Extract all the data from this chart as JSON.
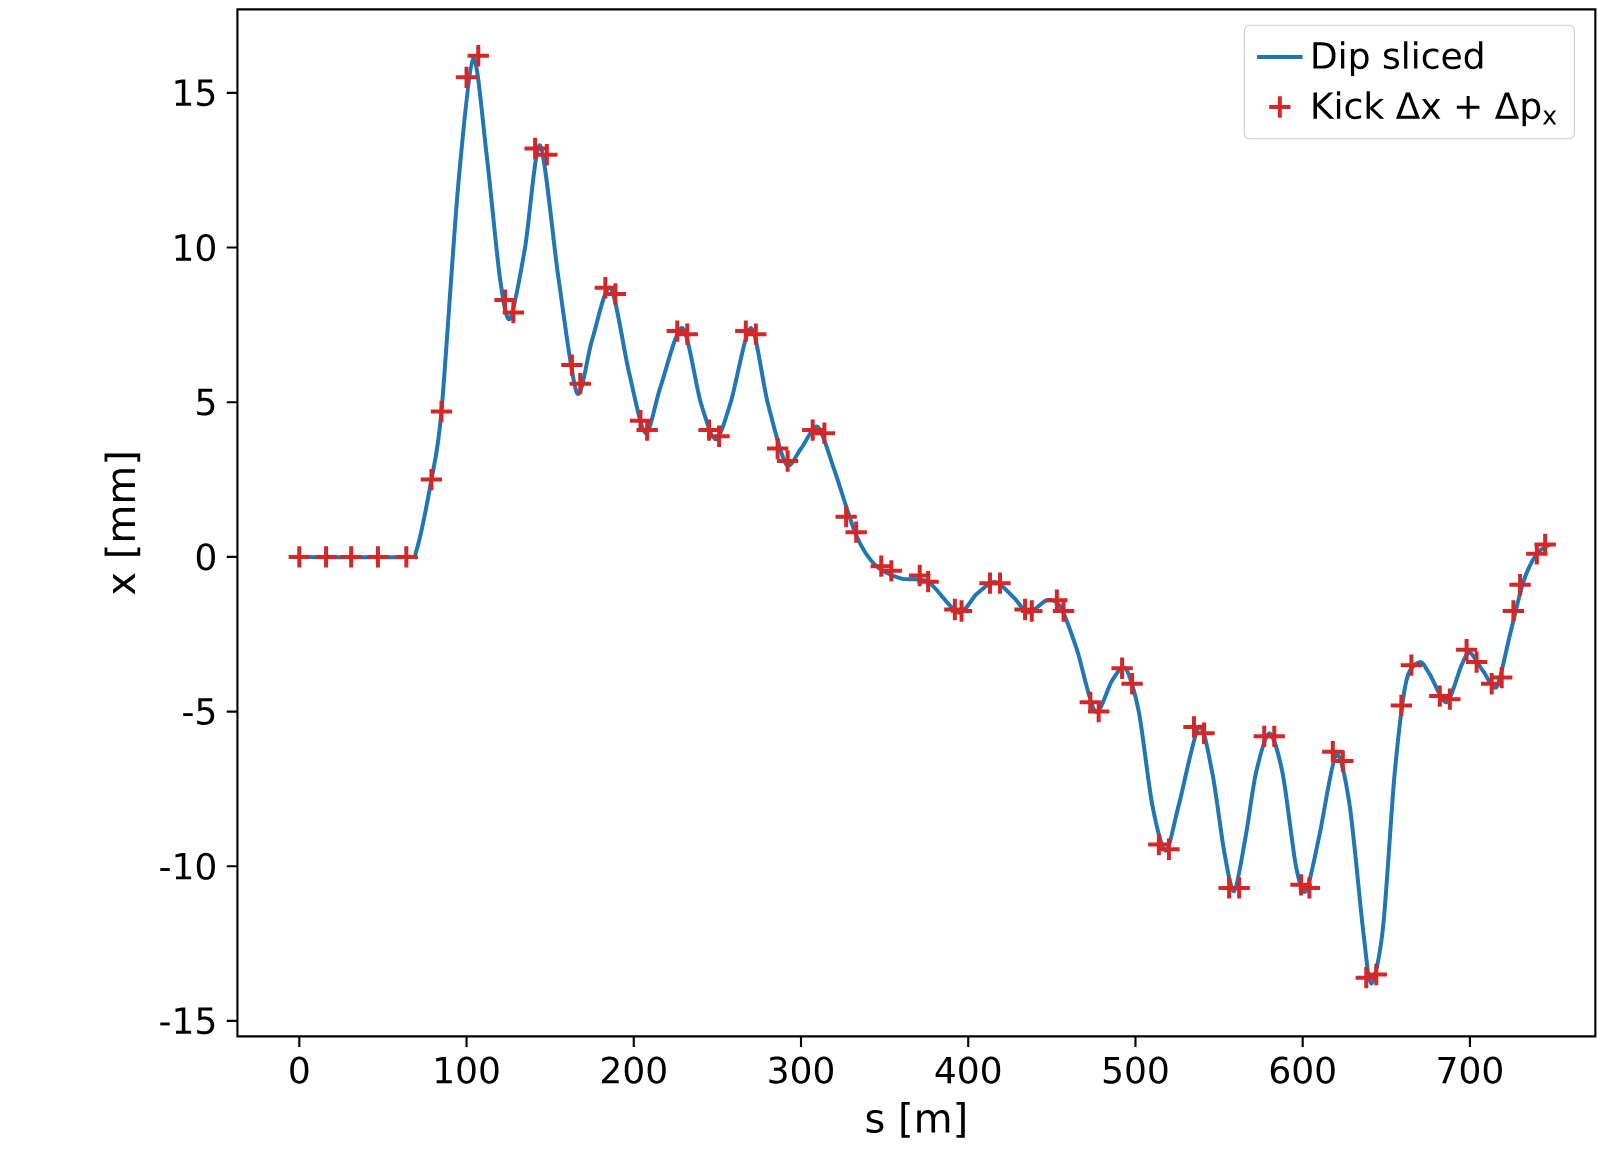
{
  "chart_data": {
    "type": "line",
    "xlabel": "s [m]",
    "ylabel": "x [mm]",
    "legend": "top right",
    "xlim": [
      -37,
      775
    ],
    "ylim": [
      -15.5,
      17.7
    ],
    "xticks": [
      0,
      100,
      200,
      300,
      400,
      500,
      600,
      700
    ],
    "yticks": [
      -15,
      -10,
      -5,
      0,
      5,
      10,
      15
    ],
    "series": [
      {
        "name": "Dip sliced",
        "color": "#1f77b4",
        "marker": "none",
        "line_style": "solid",
        "x": [
          0,
          64,
          70,
          79,
          85,
          95,
          104,
          112,
          120,
          126,
          135,
          144,
          155,
          166,
          175,
          186,
          197,
          207,
          216,
          229,
          240,
          249,
          258,
          270,
          280,
          291,
          300,
          310,
          320,
          333,
          345,
          360,
          376,
          394,
          405,
          416,
          427,
          436,
          447,
          455,
          465,
          476,
          486,
          494,
          502,
          510,
          518,
          526,
          538,
          546,
          553,
          559,
          566,
          572,
          580,
          588,
          596,
          602,
          610,
          620,
          628,
          636,
          641,
          648,
          655,
          662,
          670,
          676,
          686,
          695,
          700,
          708,
          716,
          724,
          732,
          740,
          748
        ],
        "values": [
          0,
          0,
          0.2,
          2.5,
          4.7,
          12,
          16.1,
          13,
          9,
          7.7,
          10,
          13.3,
          9,
          5.3,
          7,
          8.7,
          6,
          4.0,
          5.5,
          7.4,
          5,
          3.8,
          5,
          7.4,
          5,
          3.0,
          3.5,
          4.2,
          2.8,
          0.7,
          -0.3,
          -0.7,
          -0.8,
          -1.8,
          -1.2,
          -0.8,
          -1.3,
          -1.8,
          -1.4,
          -1.6,
          -3,
          -5.0,
          -4,
          -3.6,
          -5,
          -8,
          -9.5,
          -8,
          -5.5,
          -7,
          -9.5,
          -10.8,
          -9,
          -7,
          -5.7,
          -7,
          -10,
          -10.8,
          -9,
          -6.4,
          -8,
          -12,
          -13.8,
          -12,
          -7,
          -4,
          -3.4,
          -3.8,
          -4.7,
          -3.5,
          -3.1,
          -3.7,
          -4.2,
          -2.5,
          -0.8,
          0.1,
          0.4
        ]
      },
      {
        "name": "Kick Δx + Δp$_{x}$",
        "type": "scatter",
        "color": "#d62728",
        "marker": "cross",
        "x": [
          0,
          16,
          31,
          47,
          64,
          79,
          85,
          100,
          107,
          123,
          128,
          141,
          148,
          163,
          168,
          183,
          189,
          204,
          208,
          226,
          232,
          245,
          251,
          267,
          273,
          286,
          292,
          307,
          314,
          327,
          333,
          348,
          354,
          371,
          376,
          392,
          396,
          413,
          419,
          434,
          438,
          453,
          457,
          473,
          478,
          492,
          498,
          514,
          520,
          535,
          541,
          556,
          562,
          577,
          583,
          599,
          604,
          618,
          624,
          638,
          644,
          659,
          665,
          682,
          688,
          698,
          704,
          713,
          719,
          726,
          730,
          740,
          745
        ],
        "values": [
          0,
          0,
          0,
          0,
          0,
          2.5,
          4.7,
          15.5,
          16.2,
          8.3,
          7.9,
          13.2,
          13.0,
          6.2,
          5.6,
          8.7,
          8.5,
          4.4,
          4.1,
          7.3,
          7.2,
          4.1,
          3.9,
          7.3,
          7.2,
          3.5,
          3.1,
          4.1,
          4.0,
          1.3,
          0.8,
          -0.3,
          -0.45,
          -0.6,
          -0.8,
          -1.7,
          -1.75,
          -0.85,
          -0.85,
          -1.7,
          -1.75,
          -1.4,
          -1.75,
          -4.7,
          -5.0,
          -3.6,
          -4.1,
          -9.3,
          -9.45,
          -5.5,
          -5.7,
          -10.7,
          -10.7,
          -5.8,
          -5.8,
          -10.6,
          -10.7,
          -6.3,
          -6.6,
          -13.6,
          -13.5,
          -4.8,
          -3.5,
          -4.5,
          -4.6,
          -3.0,
          -3.4,
          -4.1,
          -3.9,
          -1.75,
          -0.9,
          0.1,
          0.4
        ]
      }
    ]
  }
}
